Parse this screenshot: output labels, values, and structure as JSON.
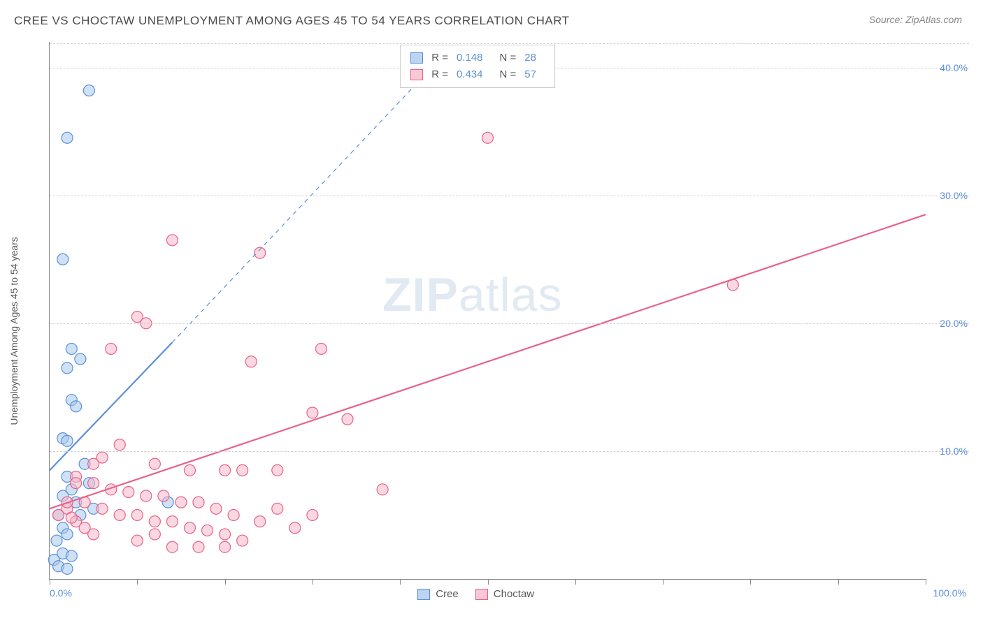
{
  "title": "CREE VS CHOCTAW UNEMPLOYMENT AMONG AGES 45 TO 54 YEARS CORRELATION CHART",
  "source_label": "Source: ZipAtlas.com",
  "y_axis_label": "Unemployment Among Ages 45 to 54 years",
  "watermark_bold": "ZIP",
  "watermark_light": "atlas",
  "chart": {
    "type": "scatter",
    "background_color": "#ffffff",
    "grid_color": "#d0d0d0",
    "axis_color": "#888888",
    "xlim": [
      0,
      100
    ],
    "ylim": [
      0,
      42
    ],
    "x_ticks": [
      0,
      10,
      20,
      30,
      40,
      50,
      60,
      70,
      80,
      90,
      100
    ],
    "x_tick_labels": {
      "0": "0.0%",
      "100": "100.0%"
    },
    "y_gridlines": [
      10,
      20,
      30,
      40
    ],
    "y_tick_labels": {
      "10": "10.0%",
      "20": "20.0%",
      "30": "30.0%",
      "40": "40.0%"
    },
    "tick_label_color": "#5b8fd9",
    "axis_label_color": "#555555",
    "axis_label_fontsize": 14,
    "tick_label_fontsize": 14,
    "marker_radius": 8,
    "marker_opacity": 0.55,
    "series": [
      {
        "name": "Cree",
        "color_fill": "#a8c8ec",
        "color_stroke": "#5b8fd9",
        "swatch_fill": "#bcd4f0",
        "swatch_stroke": "#5b8fd9",
        "R": "0.148",
        "N": "28",
        "points": [
          [
            4.5,
            38.2
          ],
          [
            2.0,
            34.5
          ],
          [
            1.5,
            25.0
          ],
          [
            2.5,
            18.0
          ],
          [
            3.5,
            17.2
          ],
          [
            2.0,
            16.5
          ],
          [
            2.5,
            14.0
          ],
          [
            3.0,
            13.5
          ],
          [
            1.5,
            11.0
          ],
          [
            2.0,
            10.8
          ],
          [
            4.0,
            9.0
          ],
          [
            2.0,
            8.0
          ],
          [
            4.5,
            7.5
          ],
          [
            2.5,
            7.0
          ],
          [
            1.5,
            6.5
          ],
          [
            3.0,
            6.0
          ],
          [
            5.0,
            5.5
          ],
          [
            3.5,
            5.0
          ],
          [
            1.0,
            5.0
          ],
          [
            1.5,
            4.0
          ],
          [
            2.0,
            3.5
          ],
          [
            0.8,
            3.0
          ],
          [
            1.5,
            2.0
          ],
          [
            2.5,
            1.8
          ],
          [
            0.5,
            1.5
          ],
          [
            1.0,
            1.0
          ],
          [
            2.0,
            0.8
          ],
          [
            13.5,
            6.0
          ]
        ],
        "trend_line": {
          "x1": 0,
          "y1": 8.5,
          "x2": 14,
          "y2": 18.5,
          "dash_x2": 45,
          "dash_y2": 41,
          "stroke_width": 2.2
        }
      },
      {
        "name": "Choctaw",
        "color_fill": "#f5b8c9",
        "color_stroke": "#e8628a",
        "swatch_fill": "#f7c8d5",
        "swatch_stroke": "#e8628a",
        "R": "0.434",
        "N": "57",
        "points": [
          [
            50,
            34.5
          ],
          [
            78,
            23.0
          ],
          [
            14,
            26.5
          ],
          [
            24,
            25.5
          ],
          [
            7,
            18.0
          ],
          [
            10,
            20.5
          ],
          [
            11,
            20.0
          ],
          [
            31,
            18.0
          ],
          [
            23,
            17.0
          ],
          [
            8,
            10.5
          ],
          [
            6,
            9.5
          ],
          [
            12,
            9.0
          ],
          [
            16,
            8.5
          ],
          [
            20,
            8.5
          ],
          [
            22,
            8.5
          ],
          [
            26,
            8.5
          ],
          [
            30,
            13.0
          ],
          [
            34,
            12.5
          ],
          [
            38,
            7.0
          ],
          [
            3,
            8.0
          ],
          [
            5,
            7.5
          ],
          [
            7,
            7.0
          ],
          [
            9,
            6.8
          ],
          [
            11,
            6.5
          ],
          [
            13,
            6.5
          ],
          [
            15,
            6.0
          ],
          [
            17,
            6.0
          ],
          [
            19,
            5.5
          ],
          [
            21,
            5.0
          ],
          [
            4,
            6.0
          ],
          [
            6,
            5.5
          ],
          [
            8,
            5.0
          ],
          [
            10,
            5.0
          ],
          [
            12,
            4.5
          ],
          [
            14,
            4.5
          ],
          [
            16,
            4.0
          ],
          [
            18,
            3.8
          ],
          [
            20,
            3.5
          ],
          [
            22,
            3.0
          ],
          [
            24,
            4.5
          ],
          [
            26,
            5.5
          ],
          [
            28,
            4.0
          ],
          [
            30,
            5.0
          ],
          [
            2,
            5.5
          ],
          [
            3,
            4.5
          ],
          [
            4,
            4.0
          ],
          [
            2,
            6.0
          ],
          [
            1,
            5.0
          ],
          [
            5,
            3.5
          ],
          [
            14,
            2.5
          ],
          [
            17,
            2.5
          ],
          [
            20,
            2.5
          ],
          [
            10,
            3.0
          ],
          [
            12,
            3.5
          ],
          [
            5,
            9.0
          ],
          [
            3,
            7.5
          ],
          [
            2.5,
            4.8
          ]
        ],
        "trend_line": {
          "x1": 0,
          "y1": 5.5,
          "x2": 100,
          "y2": 28.5,
          "stroke_width": 2.2
        }
      }
    ],
    "legend_top": {
      "R_label": "R =",
      "N_label": "N ="
    },
    "legend_bottom": [
      {
        "label": "Cree",
        "swatch_fill": "#bcd4f0",
        "swatch_stroke": "#5b8fd9"
      },
      {
        "label": "Choctaw",
        "swatch_fill": "#f7c8d5",
        "swatch_stroke": "#e8628a"
      }
    ]
  }
}
